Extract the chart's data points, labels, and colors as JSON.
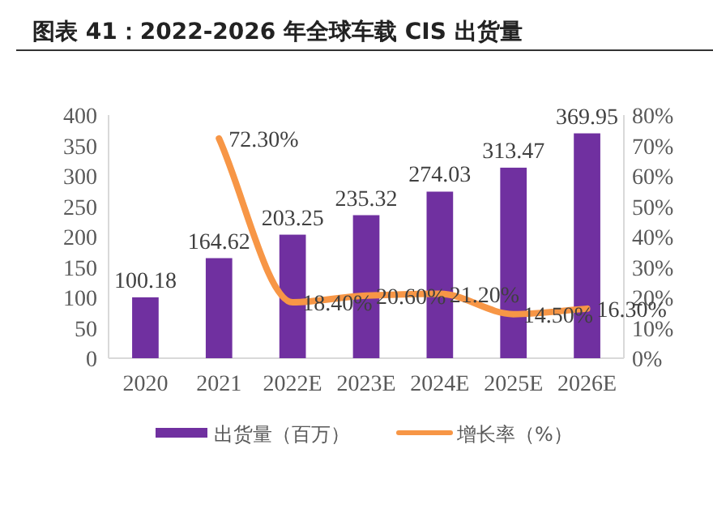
{
  "chart_data": {
    "type": "bar",
    "title": "图表 41：2022-2026 年全球车载 CIS 出货量",
    "categories": [
      "2020",
      "2021",
      "2022E",
      "2023E",
      "2024E",
      "2025E",
      "2026E"
    ],
    "series": [
      {
        "name": "出货量（百万）",
        "color": "#7030a0",
        "values": [
          100.18,
          164.62,
          203.25,
          235.32,
          274.03,
          313.47,
          369.95
        ],
        "value_labels": [
          "100.18",
          "164.62",
          "203.25",
          "235.32",
          "274.03",
          "313.47",
          "369.95"
        ]
      },
      {
        "name": "增长率（%）",
        "type": "line",
        "axis": "y2",
        "color": "#f79646",
        "values": [
          null,
          72.3,
          18.4,
          20.6,
          21.2,
          14.5,
          16.3
        ],
        "value_labels": [
          null,
          "72.30%",
          "18.40%",
          "20.60%",
          "21.20%",
          "14.50%",
          "16.30%"
        ]
      }
    ],
    "ylim": [
      0,
      400
    ],
    "yticks": [
      0,
      50,
      100,
      150,
      200,
      250,
      300,
      350,
      400
    ],
    "y2lim": [
      0,
      80
    ],
    "y2ticks": [
      {
        "value": 0,
        "label": "0%"
      },
      {
        "value": 10,
        "label": "10%"
      },
      {
        "value": 20,
        "label": "20%"
      },
      {
        "value": 30,
        "label": "30%"
      },
      {
        "value": 40,
        "label": "40%"
      },
      {
        "value": 50,
        "label": "50%"
      },
      {
        "value": 60,
        "label": "60%"
      },
      {
        "value": 70,
        "label": "70%"
      },
      {
        "value": 80,
        "label": "80%"
      }
    ],
    "legend": "bottom",
    "grid": false
  }
}
